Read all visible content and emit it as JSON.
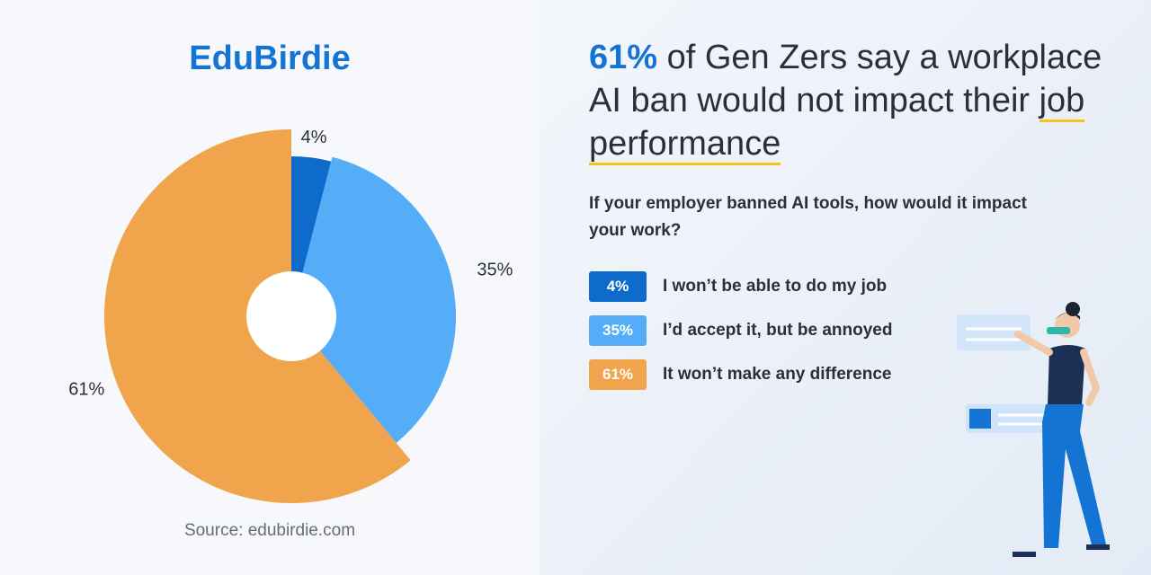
{
  "chart_data": {
    "type": "pie",
    "brand": "EduBirdie",
    "title": {
      "highlight": "61%",
      "text": " of Gen Zers say a workplace AI ban would not impact their ",
      "underlined": "job performance"
    },
    "subtitle": "If your employer banned AI tools, how would it impact your work?",
    "categories": [
      "I won’t be able to do my job",
      "I’d accept it, but be annoyed",
      "It won’t make any difference"
    ],
    "values": [
      4,
      35,
      61
    ],
    "value_labels": [
      "4%",
      "35%",
      "61%"
    ],
    "colors": [
      "#0e6bcb",
      "#55adf7",
      "#f0a54c"
    ],
    "source": "Source: edubirdie.com"
  }
}
